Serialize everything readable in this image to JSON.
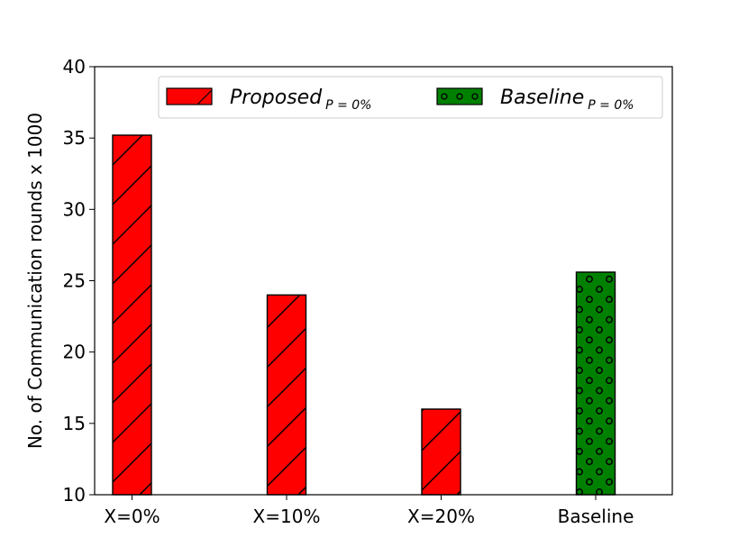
{
  "chart_data": {
    "type": "bar",
    "categories": [
      "X=0%",
      "X=10%",
      "X=20%",
      "Baseline"
    ],
    "values": [
      35.2,
      24.0,
      16.0,
      25.6
    ],
    "bar_kinds": [
      "proposed",
      "proposed",
      "proposed",
      "baseline"
    ],
    "title": "",
    "xlabel": "",
    "ylabel": "No. of Communication rounds x 1000",
    "ylim": [
      10,
      40
    ],
    "yticks": [
      "10",
      "15",
      "20",
      "25",
      "30",
      "35",
      "40"
    ],
    "grid": false,
    "legend_position": "top",
    "legend": [
      {
        "name": "Proposed",
        "subscript": "P = 0%",
        "color": "#ff0000",
        "hatch": "diagonal"
      },
      {
        "name": "Baseline",
        "subscript": "P = 0%",
        "color": "#008000",
        "hatch": "circles"
      }
    ],
    "colors": {
      "proposed": "#ff0000",
      "baseline": "#008000",
      "edge": "#000000"
    }
  }
}
